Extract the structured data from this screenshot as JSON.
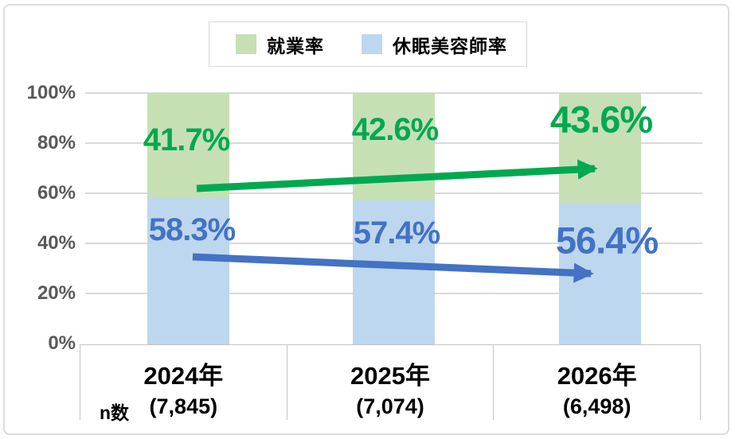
{
  "chart_data": {
    "type": "bar",
    "stacked": true,
    "percent_stacked": true,
    "title": "",
    "categories": [
      "2024年",
      "2025年",
      "2026年"
    ],
    "n_label": "n数",
    "n_values": [
      "(7,845)",
      "(7,074)",
      "(6,498)"
    ],
    "series": [
      {
        "name": "就業率",
        "fill": "#c6e0b4",
        "accent": "#00a950",
        "values": [
          41.7,
          42.6,
          43.6
        ],
        "labels": [
          "41.7%",
          "42.6%",
          "43.6%"
        ],
        "trend": "up"
      },
      {
        "name": "休眠美容師率",
        "fill": "#bdd7ee",
        "accent": "#4472c4",
        "values": [
          58.3,
          57.4,
          56.4
        ],
        "labels": [
          "58.3%",
          "57.4%",
          "56.4%"
        ],
        "trend": "down"
      }
    ],
    "y_ticks": [
      "100%",
      "80%",
      "60%",
      "40%",
      "20%",
      "0%"
    ],
    "ylim": [
      0,
      100
    ],
    "grid": true,
    "legend_position": "top",
    "colors": {
      "gridline": "#d9d9d9",
      "axis_text": "#595959",
      "table_border": "#c4c4c4"
    }
  }
}
